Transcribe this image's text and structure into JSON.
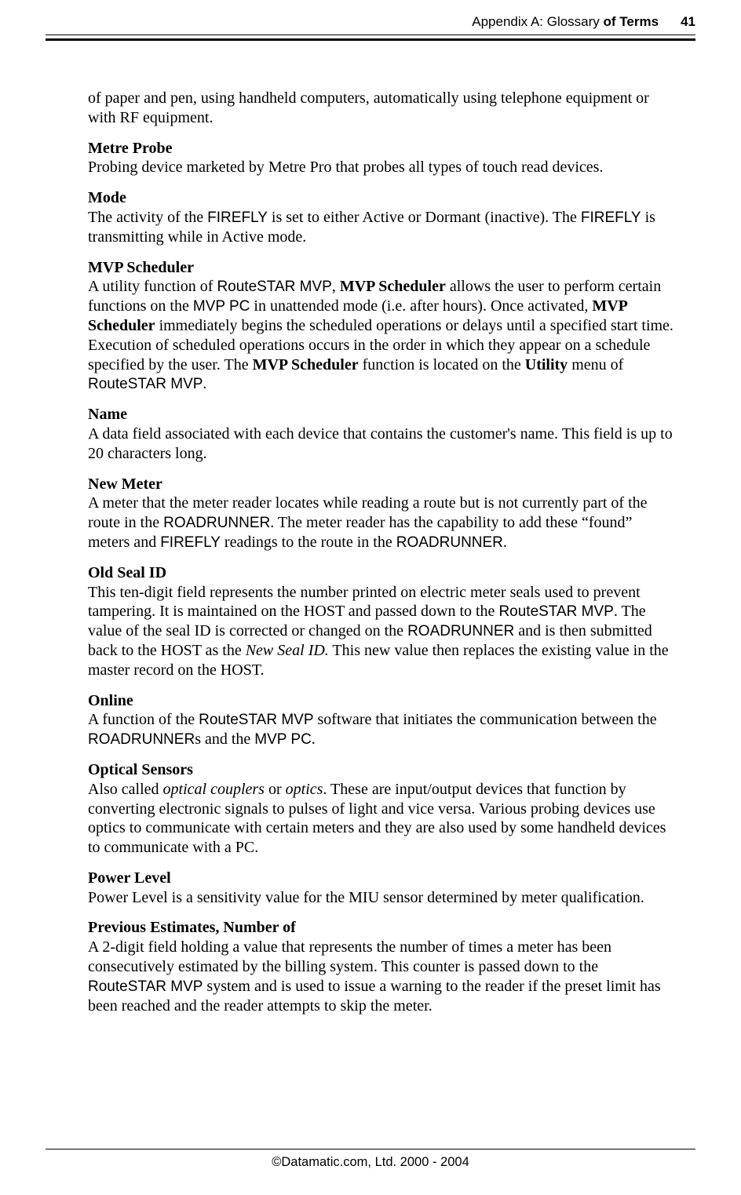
{
  "header": {
    "section": "Appendix A:  Glossary ",
    "title": "of Terms",
    "page": "41"
  },
  "intro": "of paper and pen, using handheld computers, automatically using telephone equipment or with RF equipment.",
  "entries": {
    "metre_probe": {
      "term": "Metre Probe",
      "def_plain": "Probing device marketed by Metre Pro that probes all types of touch read devices."
    },
    "mode": {
      "term": "Mode",
      "t1": "The activity of the ",
      "t2": "FIREFLY",
      "t3": " is set to either Active or Dormant (inactive). The ",
      "t4": "FIREFLY",
      "t5": " is transmitting while in Active mode."
    },
    "mvp_scheduler": {
      "term": "MVP Scheduler",
      "t1": "A utility function of ",
      "t2": "RouteSTAR MVP",
      "t3": ", ",
      "t4": "MVP Scheduler",
      "t5": " allows the user to perform certain functions on the ",
      "t6": "MVP PC",
      "t7": " in unattended mode (i.e. after hours). Once activated, ",
      "t8": "MVP Scheduler",
      "t9": " immediately begins the scheduled operations or delays until a specified start time. Execution of scheduled operations occurs in the order in which they appear on a schedule specified by the user. The ",
      "t10": "MVP Scheduler",
      "t11": " function is located on the ",
      "t12": "Utility",
      "t13": " menu of ",
      "t14": "RouteSTAR MVP",
      "t15": "."
    },
    "name": {
      "term": "Name",
      "def_plain": "A data field associated with each device that contains the customer's name. This field is up to 20 characters long."
    },
    "new_meter": {
      "term": "New Meter",
      "t1": "A meter that the meter reader locates while reading a route but is not currently part of the route in the ",
      "t2": "ROADRUNNER",
      "t3": ". The meter reader has the capability to add these “found” meters and ",
      "t4": "FIREFLY",
      "t5": " readings to the route in the ",
      "t6": "ROADRUNNER",
      "t7": "."
    },
    "old_seal": {
      "term": "Old Seal ID",
      "t1": "This ten-digit field represents the number printed on electric meter seals used to prevent tampering. It is maintained on the HOST and passed down to the ",
      "t2": "RouteSTAR MVP",
      "t3": ". The value of the seal ID is corrected or changed on the ",
      "t4": "ROADRUNNER",
      "t5": " and is then submitted back to the HOST as the ",
      "t6": "New Seal ID.",
      "t7": " This new value then replaces the existing value in the master record on the HOST."
    },
    "online": {
      "term": "Online",
      "t1": "A function of the ",
      "t2": "RouteSTAR MVP",
      "t3": " software that initiates the communication between the ",
      "t4": "ROADRUNNER",
      "t5": "s and the ",
      "t6": "MVP PC",
      "t7": "."
    },
    "optical": {
      "term": "Optical Sensors",
      "t1": "Also called ",
      "t2": "optical couplers",
      "t3": " or ",
      "t4": "optics",
      "t5": ". These are input/output devices that function by converting electronic signals to pulses of light and vice versa. Various probing devices use optics to communicate with certain meters and they are also used by some handheld devices to communicate with a PC."
    },
    "power": {
      "term": "Power Level",
      "def_plain": "Power Level is a sensitivity value for the MIU sensor determined by meter qualification."
    },
    "previous": {
      "term": "Previous Estimates, Number of",
      "t1": "A 2-digit field holding a value that represents the number of times a meter has been consecutively estimated by the billing system. This counter is passed down to the ",
      "t2": "RouteSTAR MVP",
      "t3": " system and is used to issue a warning to the reader if the preset limit has been reached and the reader attempts to skip the meter."
    }
  },
  "footer": "©Datamatic.com, Ltd. 2000 - 2004"
}
